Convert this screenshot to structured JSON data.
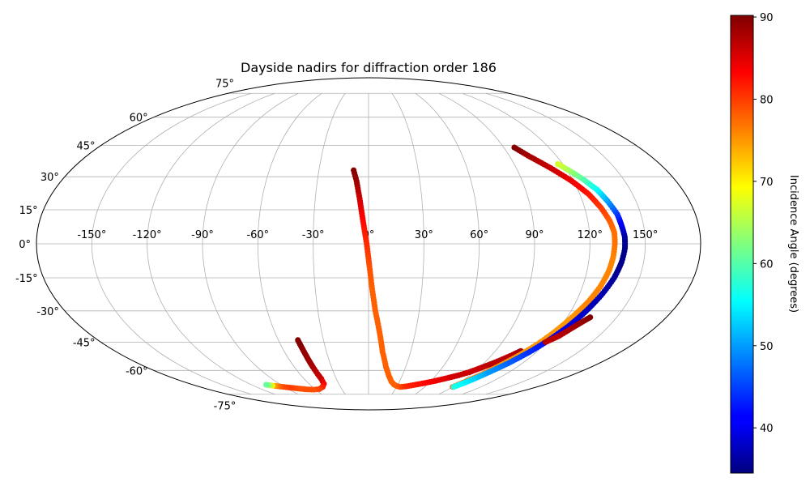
{
  "chart_data": {
    "type": "scatter",
    "projection": "mollweide",
    "title": "Dayside nadirs for diffraction order 186",
    "xlabel": "",
    "ylabel": "",
    "grid": true,
    "x_ticks": [
      "-150°",
      "-120°",
      "-90°",
      "-60°",
      "-30°",
      "0°",
      "30°",
      "60°",
      "90°",
      "120°",
      "150°"
    ],
    "y_ticks": [
      "-75°",
      "-60°",
      "-45°",
      "-30°",
      "-15°",
      "0°",
      "15°",
      "30°",
      "45°",
      "60°",
      "75°"
    ],
    "colorbar": {
      "label": "Incidence Angle (degrees)",
      "range": [
        34.5,
        90.2
      ],
      "ticks": [
        "40",
        "50",
        "60",
        "70",
        "80",
        "90"
      ],
      "colormap": "jet"
    },
    "series": [
      {
        "points": [
          [
            -9,
            33,
            90
          ],
          [
            -7,
            28,
            89
          ],
          [
            -5,
            20,
            86
          ],
          [
            -3,
            10,
            83
          ],
          [
            -1,
            0,
            81
          ],
          [
            0.5,
            -10,
            79
          ],
          [
            2,
            -20,
            78
          ],
          [
            4,
            -30,
            78
          ],
          [
            7,
            -40,
            78
          ],
          [
            10,
            -50,
            78
          ],
          [
            14,
            -58,
            78
          ],
          [
            18,
            -63,
            78
          ],
          [
            22,
            -66.5,
            78
          ],
          [
            26,
            -68.5,
            78
          ],
          [
            30,
            -69.5,
            78
          ],
          [
            34,
            -70,
            79
          ],
          [
            40,
            -69.6,
            81
          ],
          [
            48,
            -68.6,
            82
          ],
          [
            56,
            -67.5,
            83
          ],
          [
            64,
            -66.2,
            84
          ],
          [
            72,
            -64.6,
            85
          ],
          [
            80,
            -62.8,
            86
          ],
          [
            86,
            -61,
            86
          ],
          [
            90,
            -59.3,
            86
          ],
          [
            95,
            -57,
            87
          ],
          [
            100,
            -54.5,
            87
          ],
          [
            105,
            -51.5,
            87
          ],
          [
            108,
            -49.5,
            88
          ]
        ]
      },
      {
        "points": [
          [
            90,
            -70,
            78
          ],
          [
            95,
            -66,
            77
          ],
          [
            100,
            -62,
            76
          ],
          [
            105,
            -57,
            75
          ],
          [
            110,
            -52,
            75
          ],
          [
            115,
            -46,
            75
          ],
          [
            119,
            -40,
            75
          ],
          [
            123,
            -33,
            75
          ],
          [
            127,
            -26,
            76
          ],
          [
            130,
            -19,
            76
          ],
          [
            132,
            -12,
            76
          ],
          [
            133,
            -6,
            76
          ],
          [
            133.5,
            0,
            77
          ],
          [
            133.5,
            5,
            77
          ],
          [
            132,
            10,
            78
          ],
          [
            129,
            16,
            80
          ],
          [
            125,
            22,
            82
          ],
          [
            119,
            28,
            84
          ],
          [
            111,
            34,
            86
          ],
          [
            102,
            40,
            88
          ],
          [
            97,
            44,
            90
          ]
        ]
      },
      {
        "points": [
          [
            91,
            -70,
            57
          ],
          [
            97,
            -66,
            54
          ],
          [
            103,
            -61,
            50
          ],
          [
            109,
            -56,
            47
          ],
          [
            115,
            -50,
            44
          ],
          [
            120,
            -44,
            42
          ],
          [
            125,
            -37,
            40
          ],
          [
            129,
            -30,
            38
          ],
          [
            133,
            -22,
            37
          ],
          [
            136,
            -15,
            36
          ],
          [
            138,
            -8,
            35
          ],
          [
            139,
            -2,
            35
          ],
          [
            139,
            3,
            36
          ],
          [
            138,
            8,
            40
          ],
          [
            137,
            13,
            44
          ],
          [
            134,
            19,
            50
          ],
          [
            131,
            24,
            55
          ],
          [
            126,
            29,
            60
          ],
          [
            121,
            33,
            64
          ],
          [
            117,
            36,
            67
          ]
        ]
      },
      {
        "points": [
          [
            119,
            -45,
            87
          ],
          [
            124,
            -42,
            87
          ],
          [
            128,
            -38,
            88
          ],
          [
            132,
            -34.5,
            89
          ],
          [
            134,
            -33,
            90
          ]
        ]
      },
      {
        "points": [
          [
            -47,
            -44,
            90
          ],
          [
            -46.5,
            -47,
            90
          ],
          [
            -46,
            -50,
            89
          ],
          [
            -45.5,
            -54,
            89
          ],
          [
            -45,
            -58,
            88
          ],
          [
            -44.5,
            -62,
            87
          ],
          [
            -44,
            -65,
            86
          ],
          [
            -45,
            -68,
            84
          ],
          [
            -49,
            -70,
            82
          ],
          [
            -55,
            -71.4,
            80
          ],
          [
            -62,
            -71.8,
            79
          ],
          [
            -70,
            -71.6,
            79
          ],
          [
            -78,
            -71,
            79
          ],
          [
            -86,
            -70.4,
            80
          ],
          [
            -93,
            -69.8,
            79
          ],
          [
            -98,
            -69.3,
            75
          ],
          [
            -102,
            -69,
            65
          ],
          [
            -105,
            -68.6,
            61
          ]
        ]
      }
    ]
  }
}
